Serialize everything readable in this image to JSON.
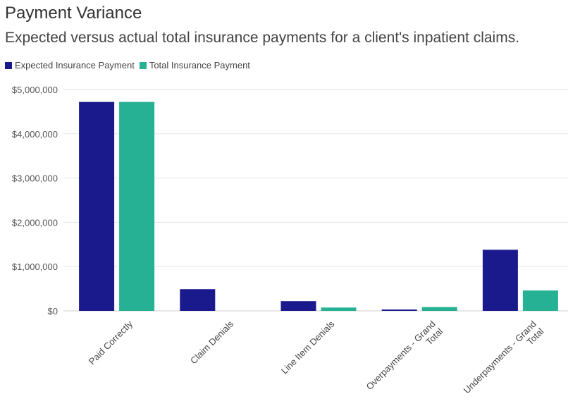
{
  "chart_data": {
    "type": "bar",
    "title": "Payment Variance",
    "subtitle": "Expected versus actual total insurance payments for a client's inpatient claims.",
    "categories": [
      [
        "Paid Correctly"
      ],
      [
        "Claim Denials"
      ],
      [
        "Line Item Denials"
      ],
      [
        "Overpayments - Grand",
        "Total"
      ],
      [
        "Underpayments - Grand",
        "Total"
      ]
    ],
    "series": [
      {
        "name": "Expected Insurance Payment",
        "color": "#1a1a8c",
        "values": [
          4720000,
          490000,
          220000,
          30000,
          1380000
        ]
      },
      {
        "name": "Total Insurance Payment",
        "color": "#26b194",
        "values": [
          4720000,
          0,
          75000,
          85000,
          460000
        ]
      }
    ],
    "ylim": [
      0,
      5000000
    ],
    "yticks": [
      0,
      1000000,
      2000000,
      3000000,
      4000000,
      5000000
    ],
    "ytick_labels": [
      "$0",
      "$1,000,000",
      "$2,000,000",
      "$3,000,000",
      "$4,000,000",
      "$5,000,000"
    ],
    "grid": true,
    "legend_position": "top-left"
  }
}
